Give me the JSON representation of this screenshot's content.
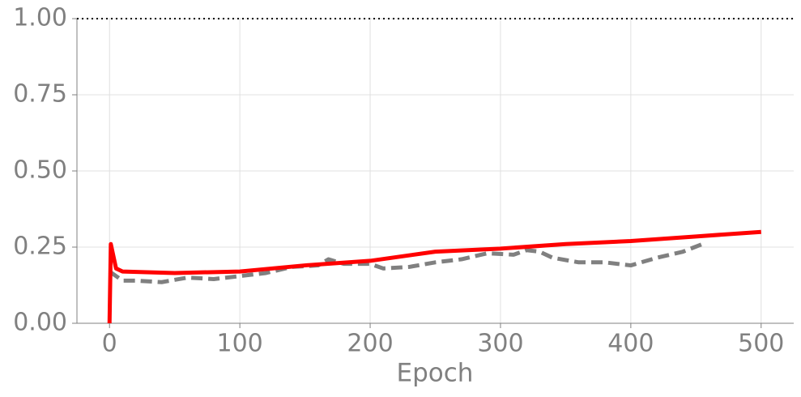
{
  "chart_data": {
    "type": "line",
    "xlabel": "Epoch",
    "xlim": [
      -25,
      525
    ],
    "ylim": [
      0,
      1
    ],
    "xticks": [
      0,
      100,
      200,
      300,
      400,
      500
    ],
    "yticks": [
      {
        "value": 0,
        "label": "0.00"
      },
      {
        "value": 0.25,
        "label": "0.25"
      },
      {
        "value": 0.5,
        "label": "0.50"
      },
      {
        "value": 0.75,
        "label": "0.75"
      },
      {
        "value": 1,
        "label": "1.00"
      }
    ],
    "grid": true,
    "hline": 1,
    "series": [
      {
        "color": "#808080",
        "dashed": true,
        "x": [
          0,
          10,
          20,
          40,
          60,
          80,
          100,
          120,
          140,
          160,
          168,
          180,
          200,
          210,
          230,
          250,
          270,
          290,
          310,
          320,
          330,
          340,
          360,
          380,
          400,
          420,
          440,
          455
        ],
        "values": [
          0.17,
          0.14,
          0.14,
          0.135,
          0.15,
          0.145,
          0.155,
          0.165,
          0.185,
          0.19,
          0.21,
          0.195,
          0.195,
          0.18,
          0.185,
          0.2,
          0.21,
          0.23,
          0.225,
          0.24,
          0.235,
          0.215,
          0.2,
          0.2,
          0.19,
          0.215,
          0.235,
          0.26
        ]
      },
      {
        "color": "#ff0000",
        "dashed": false,
        "x": [
          0,
          1,
          5,
          10,
          50,
          100,
          150,
          200,
          250,
          300,
          350,
          400,
          450,
          500
        ],
        "values": [
          0,
          0.26,
          0.18,
          0.17,
          0.165,
          0.17,
          0.19,
          0.205,
          0.235,
          0.245,
          0.26,
          0.27,
          0.285,
          0.3
        ]
      }
    ]
  }
}
